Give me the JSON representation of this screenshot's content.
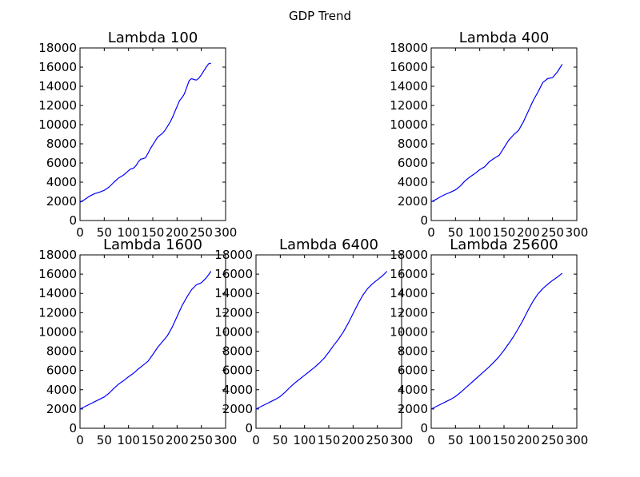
{
  "figure": {
    "title": "GDP Trend"
  },
  "chart_data": [
    {
      "type": "line",
      "title": "Lambda 100",
      "xlim": [
        0,
        300
      ],
      "ylim": [
        0,
        18000
      ],
      "xticks": [
        "0",
        "50",
        "100",
        "150",
        "200",
        "250",
        "300"
      ],
      "yticks": [
        "0",
        "2000",
        "4000",
        "6000",
        "8000",
        "10000",
        "12000",
        "14000",
        "16000",
        "18000"
      ],
      "color": "#0000ff",
      "series": [
        {
          "x": [
            0,
            10,
            20,
            30,
            40,
            50,
            60,
            70,
            80,
            90,
            100,
            105,
            110,
            115,
            120,
            125,
            130,
            135,
            140,
            145,
            150,
            155,
            160,
            165,
            170,
            175,
            180,
            185,
            190,
            195,
            200,
            205,
            210,
            215,
            220,
            225,
            230,
            235,
            240,
            245,
            250,
            255,
            260,
            265,
            270
          ],
          "values": [
            1900,
            2200,
            2550,
            2800,
            2950,
            3150,
            3500,
            4000,
            4450,
            4750,
            5200,
            5400,
            5450,
            5700,
            6100,
            6400,
            6450,
            6550,
            7000,
            7500,
            7900,
            8300,
            8700,
            8900,
            9100,
            9400,
            9800,
            10200,
            10700,
            11300,
            11900,
            12500,
            12800,
            13200,
            13900,
            14600,
            14800,
            14700,
            14650,
            14850,
            15200,
            15600,
            16000,
            16350,
            16400
          ]
        }
      ]
    },
    {
      "type": "line",
      "title": "Lambda 400",
      "xlim": [
        0,
        300
      ],
      "ylim": [
        0,
        18000
      ],
      "xticks": [
        "0",
        "50",
        "100",
        "150",
        "200",
        "250",
        "300"
      ],
      "yticks": [
        "0",
        "2000",
        "4000",
        "6000",
        "8000",
        "10000",
        "12000",
        "14000",
        "16000",
        "18000"
      ],
      "color": "#0000ff",
      "series": [
        {
          "x": [
            0,
            10,
            20,
            30,
            40,
            50,
            60,
            70,
            80,
            90,
            100,
            110,
            120,
            130,
            140,
            150,
            160,
            170,
            180,
            190,
            200,
            210,
            220,
            230,
            240,
            250,
            260,
            270
          ],
          "values": [
            1950,
            2200,
            2500,
            2750,
            2950,
            3200,
            3600,
            4150,
            4550,
            4900,
            5300,
            5600,
            6150,
            6500,
            6800,
            7600,
            8400,
            8950,
            9400,
            10300,
            11400,
            12500,
            13400,
            14400,
            14800,
            14900,
            15500,
            16300
          ]
        }
      ]
    },
    {
      "type": "line",
      "title": "Lambda 1600",
      "xlim": [
        0,
        300
      ],
      "ylim": [
        0,
        18000
      ],
      "xticks": [
        "0",
        "50",
        "100",
        "150",
        "200",
        "250",
        "300"
      ],
      "yticks": [
        "0",
        "2000",
        "4000",
        "6000",
        "8000",
        "10000",
        "12000",
        "14000",
        "16000",
        "18000"
      ],
      "color": "#0000ff",
      "series": [
        {
          "x": [
            0,
            10,
            20,
            30,
            40,
            50,
            60,
            70,
            80,
            90,
            100,
            110,
            120,
            130,
            140,
            150,
            160,
            170,
            180,
            190,
            200,
            210,
            220,
            230,
            240,
            250,
            260,
            270
          ],
          "values": [
            2000,
            2250,
            2500,
            2750,
            3000,
            3250,
            3650,
            4150,
            4600,
            4950,
            5350,
            5700,
            6150,
            6550,
            6950,
            7650,
            8400,
            9000,
            9600,
            10500,
            11600,
            12700,
            13600,
            14400,
            14900,
            15100,
            15600,
            16300
          ]
        }
      ]
    },
    {
      "type": "line",
      "title": "Lambda 6400",
      "xlim": [
        0,
        300
      ],
      "ylim": [
        0,
        18000
      ],
      "xticks": [
        "0",
        "50",
        "100",
        "150",
        "200",
        "250",
        "300"
      ],
      "yticks": [
        "0",
        "2000",
        "4000",
        "6000",
        "8000",
        "10000",
        "12000",
        "14000",
        "16000",
        "18000"
      ],
      "color": "#0000ff",
      "series": [
        {
          "x": [
            0,
            10,
            20,
            30,
            40,
            50,
            60,
            70,
            80,
            90,
            100,
            110,
            120,
            130,
            140,
            150,
            160,
            170,
            180,
            190,
            200,
            210,
            220,
            230,
            240,
            250,
            260,
            270
          ],
          "values": [
            2000,
            2250,
            2500,
            2750,
            3000,
            3300,
            3750,
            4250,
            4700,
            5100,
            5500,
            5900,
            6300,
            6750,
            7250,
            7900,
            8600,
            9250,
            10000,
            10900,
            11900,
            12900,
            13800,
            14500,
            15000,
            15400,
            15800,
            16300
          ]
        }
      ]
    },
    {
      "type": "line",
      "title": "Lambda 25600",
      "xlim": [
        0,
        300
      ],
      "ylim": [
        0,
        18000
      ],
      "xticks": [
        "0",
        "50",
        "100",
        "150",
        "200",
        "250",
        "300"
      ],
      "yticks": [
        "0",
        "2000",
        "4000",
        "6000",
        "8000",
        "10000",
        "12000",
        "14000",
        "16000",
        "18000"
      ],
      "color": "#0000ff",
      "series": [
        {
          "x": [
            0,
            10,
            20,
            30,
            40,
            50,
            60,
            70,
            80,
            90,
            100,
            110,
            120,
            130,
            140,
            150,
            160,
            170,
            180,
            190,
            200,
            210,
            220,
            230,
            240,
            250,
            260,
            270
          ],
          "values": [
            2000,
            2250,
            2500,
            2750,
            3000,
            3300,
            3700,
            4150,
            4600,
            5050,
            5500,
            5950,
            6400,
            6900,
            7450,
            8100,
            8800,
            9550,
            10400,
            11300,
            12300,
            13200,
            13950,
            14500,
            14950,
            15350,
            15700,
            16100
          ]
        }
      ]
    }
  ]
}
